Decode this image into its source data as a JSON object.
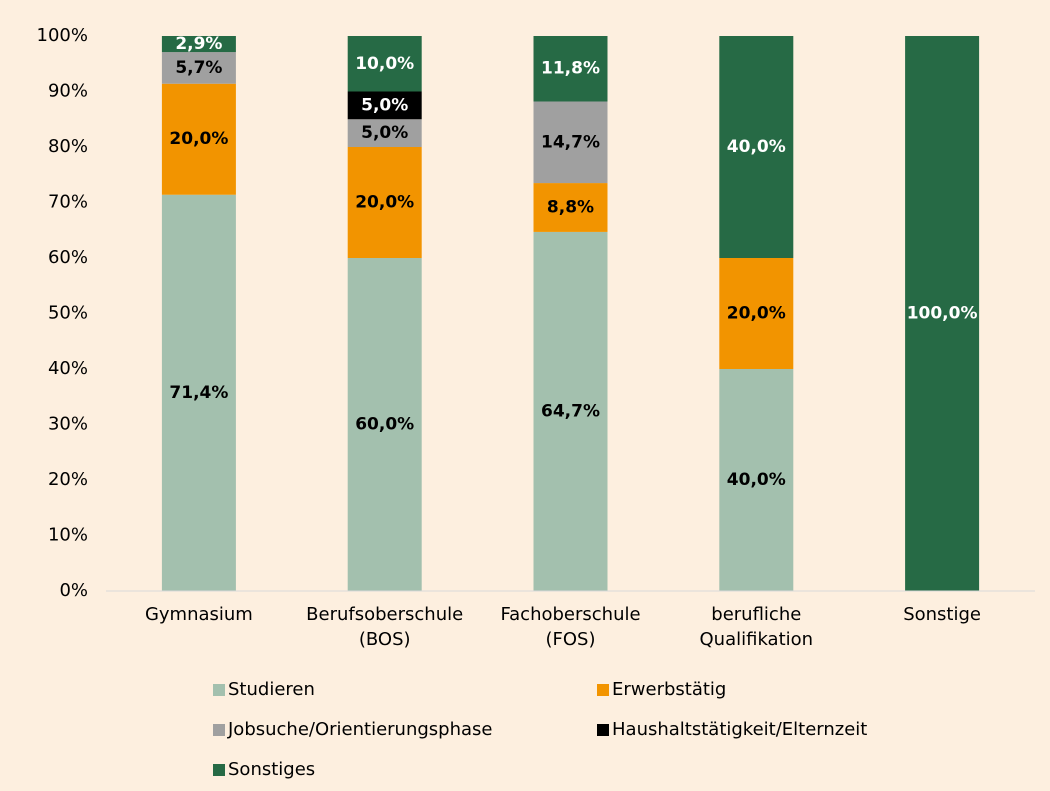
{
  "chart_data": {
    "type": "stacked_bar",
    "categories": [
      "Gymnasium",
      "Berufsoberschule (BOS)",
      "Fachoberschule (FOS)",
      "berufliche Qualifikation",
      "Sonstige"
    ],
    "series": [
      {
        "name": "Studieren",
        "color": "#a3c0ae",
        "values": [
          71.4,
          60,
          64.7,
          40,
          null
        ],
        "value_labels": [
          "71,4%",
          "60,0%",
          "64,7%",
          "40,0%",
          null
        ]
      },
      {
        "name": "Erwerbstätig",
        "color": "#f29400",
        "values": [
          20,
          20,
          8.8,
          20,
          null
        ],
        "value_labels": [
          "20,0%",
          "20,0%",
          "8,8%",
          "20,0%",
          null
        ]
      },
      {
        "name": "Jobsuche/Orientierungsphase",
        "color": "#a0a0a0",
        "values": [
          5.7,
          5,
          14.7,
          null,
          null
        ],
        "value_labels": [
          "5,7%",
          "5,0%",
          "14,7%",
          null,
          null
        ]
      },
      {
        "name": "Haushaltstätigkeit/Elternzeit",
        "color": "#000000",
        "values": [
          null,
          5,
          null,
          null,
          null
        ],
        "value_labels": [
          null,
          "5,0%",
          null,
          null,
          null
        ]
      },
      {
        "name": "Sonstiges",
        "color": "#266a45",
        "values": [
          2.9,
          10,
          11.8,
          40,
          100
        ],
        "value_labels": [
          "2,9%",
          "10,0%",
          "11,8%",
          "40,0%",
          "100,0%"
        ]
      }
    ],
    "ylim": [
      0,
      100
    ],
    "yticks": [
      {
        "value": 0,
        "label": "0%"
      },
      {
        "value": 10,
        "label": "10%"
      },
      {
        "value": 20,
        "label": "20%"
      },
      {
        "value": 30,
        "label": "30%"
      },
      {
        "value": 40,
        "label": "40%"
      },
      {
        "value": 50,
        "label": "50%"
      },
      {
        "value": 60,
        "label": "60%"
      },
      {
        "value": 70,
        "label": "70%"
      },
      {
        "value": 80,
        "label": "80%"
      },
      {
        "value": 90,
        "label": "90%"
      },
      {
        "value": 100,
        "label": "100%"
      }
    ],
    "grid": false,
    "legend": "bottom"
  }
}
